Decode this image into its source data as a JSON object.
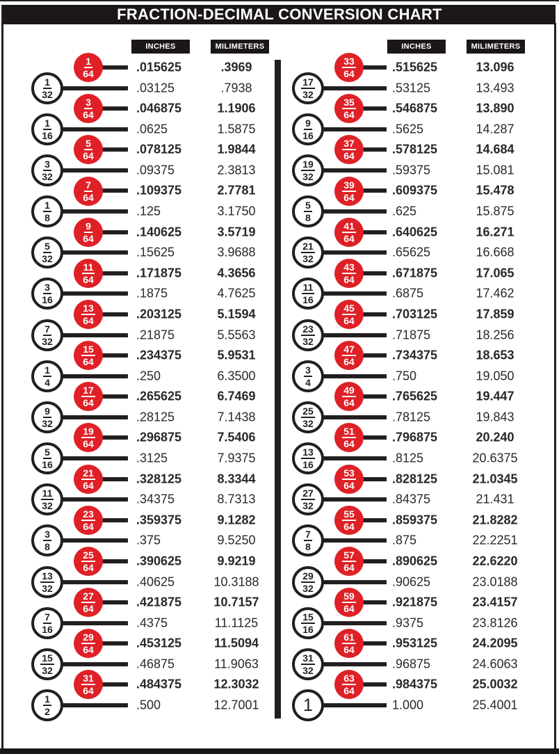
{
  "title": "FRACTION-DECIMAL CONVERSION CHART",
  "column_headers": {
    "inches": "INCHES",
    "millimeters": "MILIMETERS"
  },
  "colors": {
    "accent_red": "#df2127",
    "ink_black": "#231f20"
  },
  "table": {
    "columns": [
      {
        "rows": [
          {
            "numerator": "1",
            "denominator": "64",
            "highlight": true,
            "inches": ".015625",
            "millimeters": ".3969"
          },
          {
            "numerator": "1",
            "denominator": "32",
            "highlight": false,
            "inches": ".03125",
            "millimeters": ".7938"
          },
          {
            "numerator": "3",
            "denominator": "64",
            "highlight": true,
            "inches": ".046875",
            "millimeters": "1.1906"
          },
          {
            "numerator": "1",
            "denominator": "16",
            "highlight": false,
            "inches": ".0625",
            "millimeters": "1.5875"
          },
          {
            "numerator": "5",
            "denominator": "64",
            "highlight": true,
            "inches": ".078125",
            "millimeters": "1.9844"
          },
          {
            "numerator": "3",
            "denominator": "32",
            "highlight": false,
            "inches": ".09375",
            "millimeters": "2.3813"
          },
          {
            "numerator": "7",
            "denominator": "64",
            "highlight": true,
            "inches": ".109375",
            "millimeters": "2.7781"
          },
          {
            "numerator": "1",
            "denominator": "8",
            "highlight": false,
            "inches": ".125",
            "millimeters": "3.1750"
          },
          {
            "numerator": "9",
            "denominator": "64",
            "highlight": true,
            "inches": ".140625",
            "millimeters": "3.5719"
          },
          {
            "numerator": "5",
            "denominator": "32",
            "highlight": false,
            "inches": ".15625",
            "millimeters": "3.9688"
          },
          {
            "numerator": "11",
            "denominator": "64",
            "highlight": true,
            "inches": ".171875",
            "millimeters": "4.3656"
          },
          {
            "numerator": "3",
            "denominator": "16",
            "highlight": false,
            "inches": ".1875",
            "millimeters": "4.7625"
          },
          {
            "numerator": "13",
            "denominator": "64",
            "highlight": true,
            "inches": ".203125",
            "millimeters": "5.1594"
          },
          {
            "numerator": "7",
            "denominator": "32",
            "highlight": false,
            "inches": ".21875",
            "millimeters": "5.5563"
          },
          {
            "numerator": "15",
            "denominator": "64",
            "highlight": true,
            "inches": ".234375",
            "millimeters": "5.9531"
          },
          {
            "numerator": "1",
            "denominator": "4",
            "highlight": false,
            "inches": ".250",
            "millimeters": "6.3500"
          },
          {
            "numerator": "17",
            "denominator": "64",
            "highlight": true,
            "inches": ".265625",
            "millimeters": "6.7469"
          },
          {
            "numerator": "9",
            "denominator": "32",
            "highlight": false,
            "inches": ".28125",
            "millimeters": "7.1438"
          },
          {
            "numerator": "19",
            "denominator": "64",
            "highlight": true,
            "inches": ".296875",
            "millimeters": "7.5406"
          },
          {
            "numerator": "5",
            "denominator": "16",
            "highlight": false,
            "inches": ".3125",
            "millimeters": "7.9375"
          },
          {
            "numerator": "21",
            "denominator": "64",
            "highlight": true,
            "inches": ".328125",
            "millimeters": "8.3344"
          },
          {
            "numerator": "11",
            "denominator": "32",
            "highlight": false,
            "inches": ".34375",
            "millimeters": "8.7313"
          },
          {
            "numerator": "23",
            "denominator": "64",
            "highlight": true,
            "inches": ".359375",
            "millimeters": "9.1282"
          },
          {
            "numerator": "3",
            "denominator": "8",
            "highlight": false,
            "inches": ".375",
            "millimeters": "9.5250"
          },
          {
            "numerator": "25",
            "denominator": "64",
            "highlight": true,
            "inches": ".390625",
            "millimeters": "9.9219"
          },
          {
            "numerator": "13",
            "denominator": "32",
            "highlight": false,
            "inches": ".40625",
            "millimeters": "10.3188"
          },
          {
            "numerator": "27",
            "denominator": "64",
            "highlight": true,
            "inches": ".421875",
            "millimeters": "10.7157"
          },
          {
            "numerator": "7",
            "denominator": "16",
            "highlight": false,
            "inches": ".4375",
            "millimeters": "11.1125"
          },
          {
            "numerator": "29",
            "denominator": "64",
            "highlight": true,
            "inches": ".453125",
            "millimeters": "11.5094"
          },
          {
            "numerator": "15",
            "denominator": "32",
            "highlight": false,
            "inches": ".46875",
            "millimeters": "11.9063"
          },
          {
            "numerator": "31",
            "denominator": "64",
            "highlight": true,
            "inches": ".484375",
            "millimeters": "12.3032"
          },
          {
            "numerator": "1",
            "denominator": "2",
            "highlight": false,
            "inches": ".500",
            "millimeters": "12.7001"
          }
        ]
      },
      {
        "rows": [
          {
            "numerator": "33",
            "denominator": "64",
            "highlight": true,
            "inches": ".515625",
            "millimeters": "13.096"
          },
          {
            "numerator": "17",
            "denominator": "32",
            "highlight": false,
            "inches": ".53125",
            "millimeters": "13.493"
          },
          {
            "numerator": "35",
            "denominator": "64",
            "highlight": true,
            "inches": ".546875",
            "millimeters": "13.890"
          },
          {
            "numerator": "9",
            "denominator": "16",
            "highlight": false,
            "inches": ".5625",
            "millimeters": "14.287"
          },
          {
            "numerator": "37",
            "denominator": "64",
            "highlight": true,
            "inches": ".578125",
            "millimeters": "14.684"
          },
          {
            "numerator": "19",
            "denominator": "32",
            "highlight": false,
            "inches": ".59375",
            "millimeters": "15.081"
          },
          {
            "numerator": "39",
            "denominator": "64",
            "highlight": true,
            "inches": ".609375",
            "millimeters": "15.478"
          },
          {
            "numerator": "5",
            "denominator": "8",
            "highlight": false,
            "inches": ".625",
            "millimeters": "15.875"
          },
          {
            "numerator": "41",
            "denominator": "64",
            "highlight": true,
            "inches": ".640625",
            "millimeters": "16.271"
          },
          {
            "numerator": "21",
            "denominator": "32",
            "highlight": false,
            "inches": ".65625",
            "millimeters": "16.668"
          },
          {
            "numerator": "43",
            "denominator": "64",
            "highlight": true,
            "inches": ".671875",
            "millimeters": "17.065"
          },
          {
            "numerator": "11",
            "denominator": "16",
            "highlight": false,
            "inches": ".6875",
            "millimeters": "17.462"
          },
          {
            "numerator": "45",
            "denominator": "64",
            "highlight": true,
            "inches": ".703125",
            "millimeters": "17.859"
          },
          {
            "numerator": "23",
            "denominator": "32",
            "highlight": false,
            "inches": ".71875",
            "millimeters": "18.256"
          },
          {
            "numerator": "47",
            "denominator": "64",
            "highlight": true,
            "inches": ".734375",
            "millimeters": "18.653"
          },
          {
            "numerator": "3",
            "denominator": "4",
            "highlight": false,
            "inches": ".750",
            "millimeters": "19.050"
          },
          {
            "numerator": "49",
            "denominator": "64",
            "highlight": true,
            "inches": ".765625",
            "millimeters": "19.447"
          },
          {
            "numerator": "25",
            "denominator": "32",
            "highlight": false,
            "inches": ".78125",
            "millimeters": "19.843"
          },
          {
            "numerator": "51",
            "denominator": "64",
            "highlight": true,
            "inches": ".796875",
            "millimeters": "20.240"
          },
          {
            "numerator": "13",
            "denominator": "16",
            "highlight": false,
            "inches": ".8125",
            "millimeters": "20.6375"
          },
          {
            "numerator": "53",
            "denominator": "64",
            "highlight": true,
            "inches": ".828125",
            "millimeters": "21.0345"
          },
          {
            "numerator": "27",
            "denominator": "32",
            "highlight": false,
            "inches": ".84375",
            "millimeters": "21.431"
          },
          {
            "numerator": "55",
            "denominator": "64",
            "highlight": true,
            "inches": ".859375",
            "millimeters": "21.8282"
          },
          {
            "numerator": "7",
            "denominator": "8",
            "highlight": false,
            "inches": ".875",
            "millimeters": "22.2251"
          },
          {
            "numerator": "57",
            "denominator": "64",
            "highlight": true,
            "inches": ".890625",
            "millimeters": "22.6220"
          },
          {
            "numerator": "29",
            "denominator": "32",
            "highlight": false,
            "inches": ".90625",
            "millimeters": "23.0188"
          },
          {
            "numerator": "59",
            "denominator": "64",
            "highlight": true,
            "inches": ".921875",
            "millimeters": "23.4157"
          },
          {
            "numerator": "15",
            "denominator": "16",
            "highlight": false,
            "inches": ".9375",
            "millimeters": "23.8126"
          },
          {
            "numerator": "61",
            "denominator": "64",
            "highlight": true,
            "inches": ".953125",
            "millimeters": "24.2095"
          },
          {
            "numerator": "31",
            "denominator": "32",
            "highlight": false,
            "inches": ".96875",
            "millimeters": "24.6063"
          },
          {
            "numerator": "63",
            "denominator": "64",
            "highlight": true,
            "inches": ".984375",
            "millimeters": "25.0032"
          },
          {
            "numerator": "1",
            "denominator": null,
            "highlight": false,
            "inches": "1.000",
            "millimeters": "25.4001"
          }
        ]
      }
    ]
  }
}
